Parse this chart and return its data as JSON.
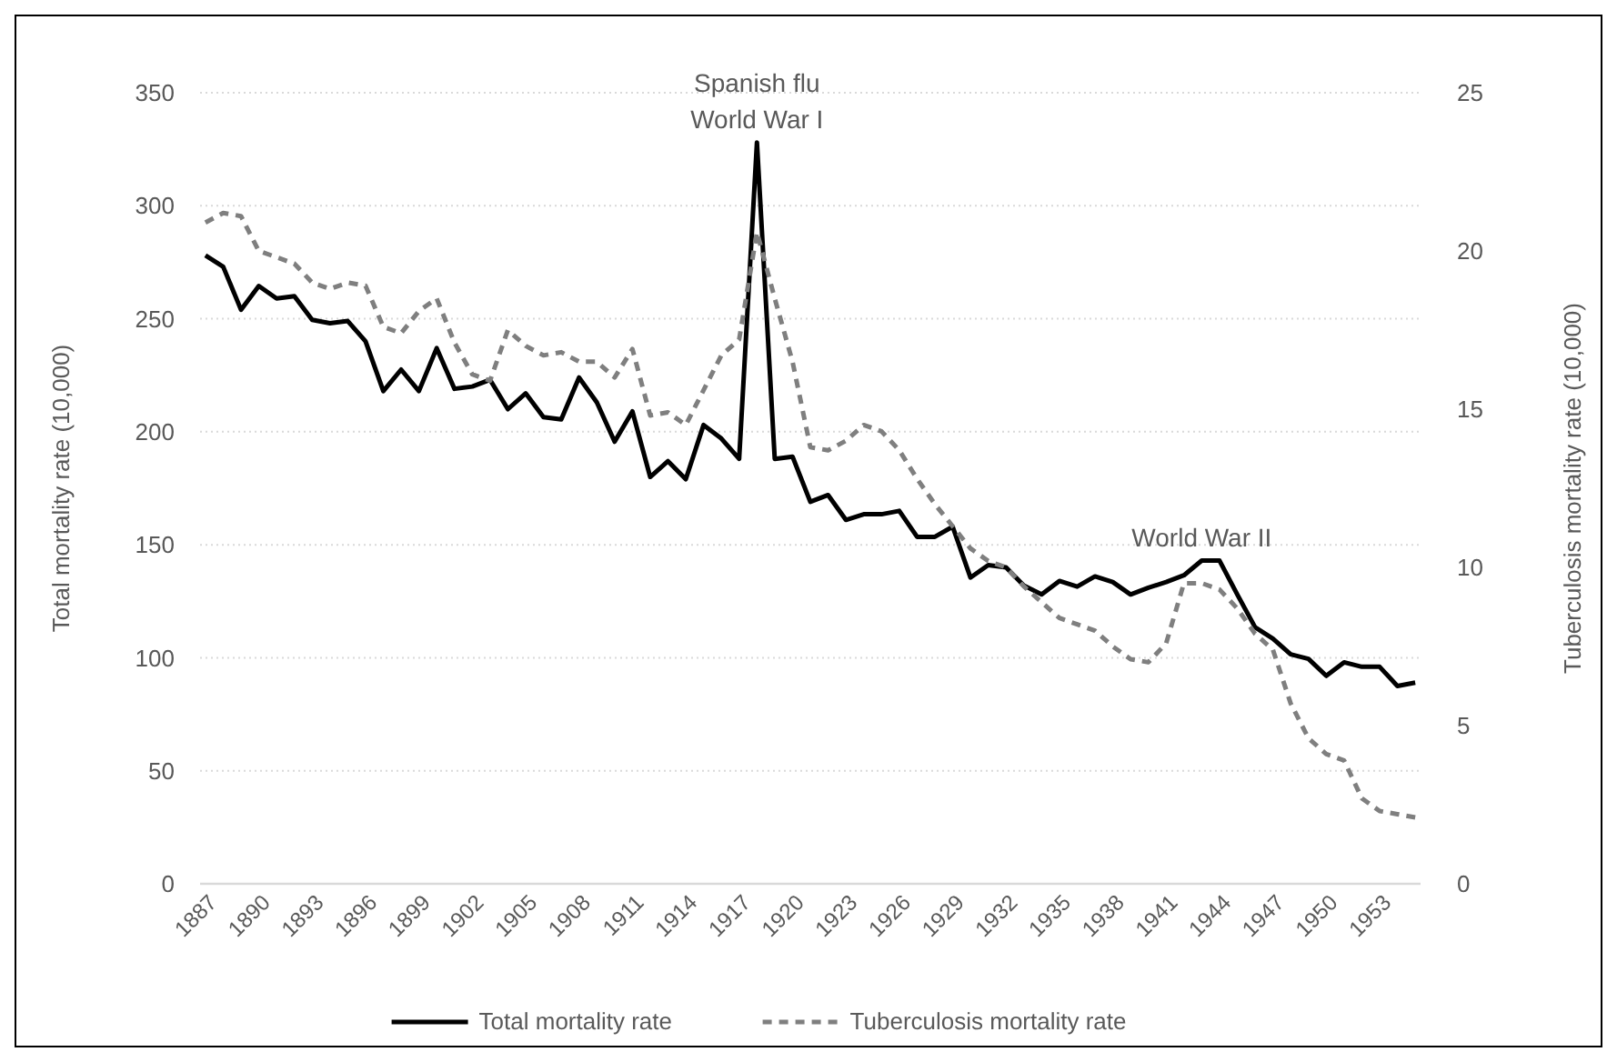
{
  "chart_data": {
    "type": "line",
    "ylabel": "Total mortality rate (10,000)",
    "y2label": "Tuberculosis mortality rate (10,000)",
    "x": [
      1887,
      1888,
      1889,
      1890,
      1891,
      1892,
      1893,
      1894,
      1895,
      1896,
      1897,
      1898,
      1899,
      1900,
      1901,
      1902,
      1903,
      1904,
      1905,
      1906,
      1907,
      1908,
      1909,
      1910,
      1911,
      1912,
      1913,
      1914,
      1915,
      1916,
      1917,
      1918,
      1919,
      1920,
      1921,
      1922,
      1923,
      1924,
      1925,
      1926,
      1927,
      1928,
      1929,
      1930,
      1931,
      1932,
      1933,
      1934,
      1935,
      1936,
      1937,
      1938,
      1939,
      1940,
      1941,
      1942,
      1943,
      1944,
      1945,
      1946,
      1947,
      1948,
      1949,
      1950,
      1951,
      1952,
      1953,
      1954,
      1955
    ],
    "xlim": [
      1886.7,
      1955.3
    ],
    "xticks": [
      1887,
      1890,
      1893,
      1896,
      1899,
      1902,
      1905,
      1908,
      1911,
      1914,
      1917,
      1920,
      1923,
      1926,
      1929,
      1932,
      1935,
      1938,
      1941,
      1944,
      1947,
      1950,
      1953
    ],
    "ylim": [
      0,
      350
    ],
    "yticks": [
      0,
      50,
      100,
      150,
      200,
      250,
      300,
      350
    ],
    "y2lim": [
      0,
      25
    ],
    "y2ticks": [
      0,
      5,
      10,
      15,
      20,
      25
    ],
    "grid": "y",
    "legend": "bottom",
    "series": [
      {
        "name": "Total mortality rate",
        "color": "#000000",
        "line_style": "solid",
        "values": [
          278,
          273,
          254,
          264.5,
          259,
          260,
          249.5,
          248,
          249,
          240,
          218,
          227.5,
          218,
          237,
          219,
          220,
          223,
          210,
          217,
          206.5,
          205.5,
          224,
          213,
          195.6,
          209,
          180,
          187,
          179,
          203,
          197,
          188,
          328,
          188,
          189,
          169,
          172,
          161,
          163.5,
          163.5,
          165,
          153.5,
          153.5,
          158,
          135.5,
          141,
          140,
          132,
          128,
          134,
          131.5,
          136,
          133.5,
          128,
          131,
          133.5,
          136.5,
          143,
          143,
          128,
          113.5,
          108.5,
          101.5,
          99.5,
          92,
          98,
          96,
          96,
          87.5,
          89
        ]
      },
      {
        "name": "Tuberculosis mortality rate",
        "color": "#7f7f7f",
        "line_style": "dashed",
        "axis": "y2",
        "values": [
          20.9,
          21.2,
          21.1,
          20,
          19.8,
          19.6,
          19,
          18.8,
          19,
          18.9,
          17.6,
          17.4,
          18.1,
          18.5,
          17.1,
          16.1,
          15.9,
          17.5,
          17,
          16.7,
          16.8,
          16.5,
          16.5,
          16,
          16.9,
          14.8,
          14.9,
          14.5,
          15.6,
          16.7,
          17.2,
          20.6,
          18.5,
          16.5,
          13.8,
          13.7,
          14,
          14.5,
          14.3,
          13.7,
          12.8,
          12,
          11.3,
          10.6,
          10.2,
          10,
          9.4,
          8.9,
          8.4,
          8.2,
          8,
          7.5,
          7.1,
          7,
          7.6,
          9.5,
          9.5,
          9.3,
          8.7,
          7.9,
          7.4,
          5.7,
          4.6,
          4.1,
          3.9,
          2.7,
          2.3,
          2.2,
          2.1
        ]
      }
    ],
    "annotations": [
      {
        "text": "Spanish flu\nWorld War I",
        "x": 1918,
        "y": 328
      },
      {
        "text": "World War II",
        "x": 1943,
        "y": 143
      }
    ]
  }
}
